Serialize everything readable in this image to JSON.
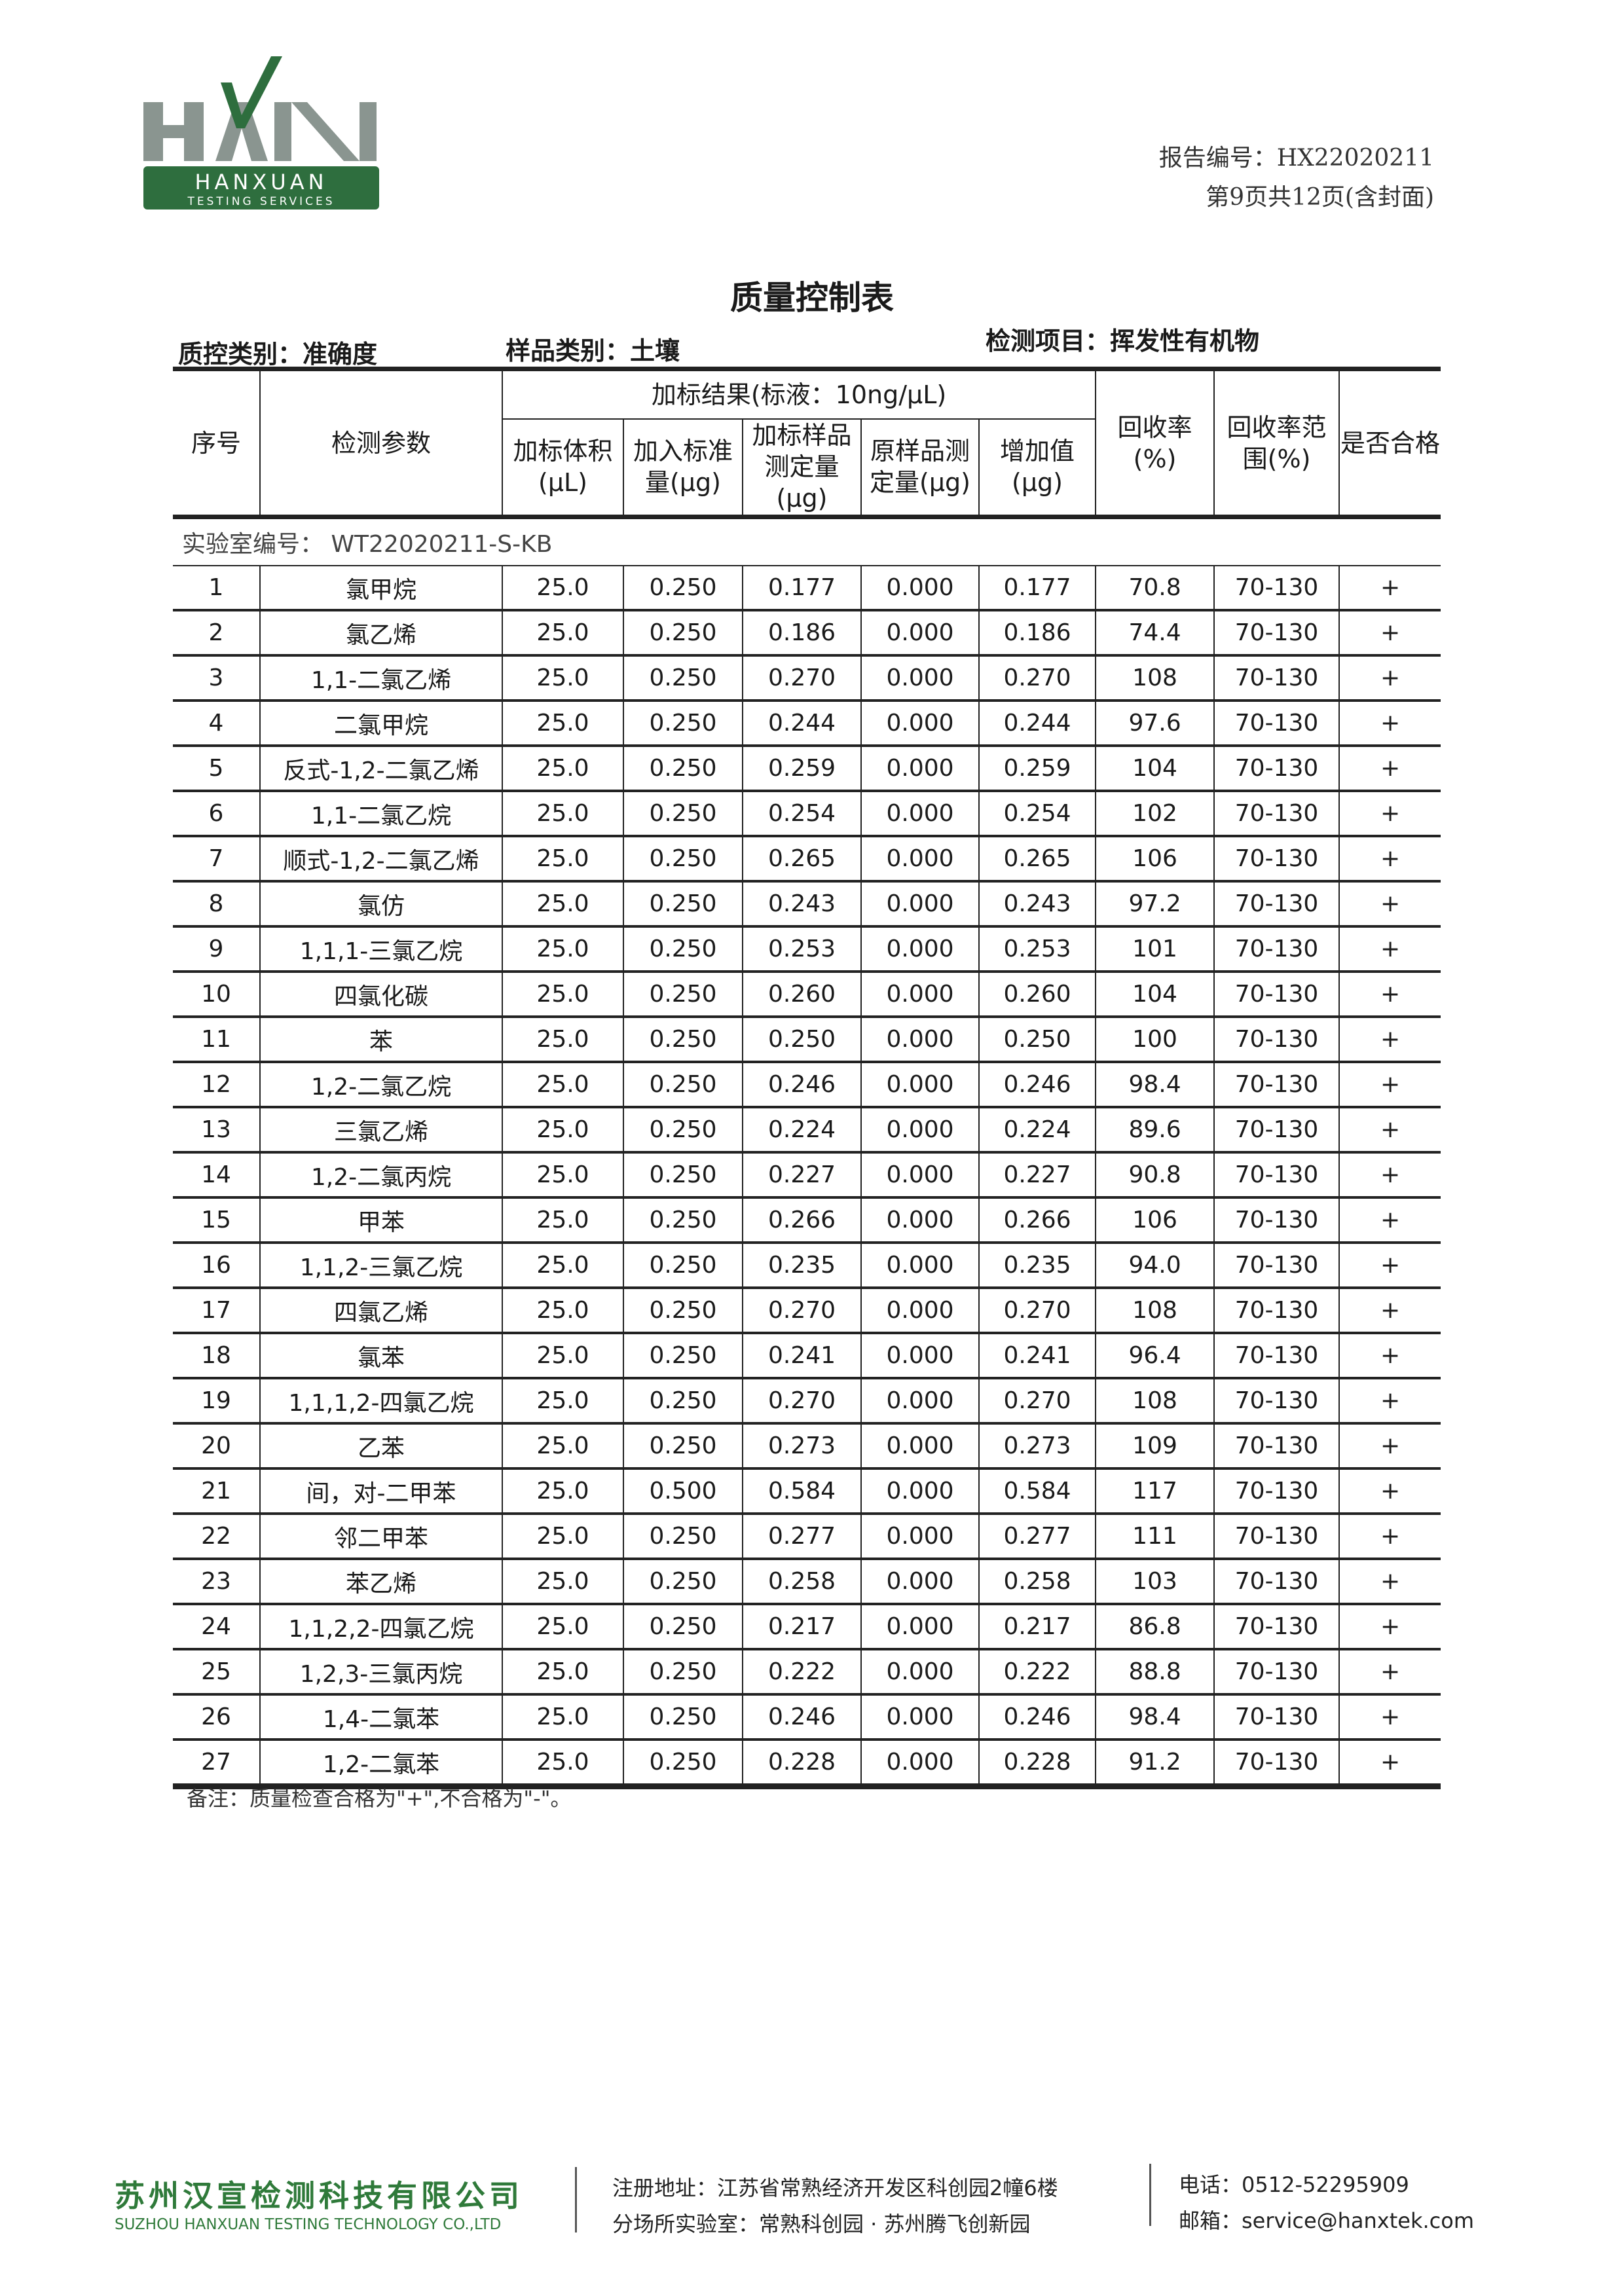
{
  "logo": {
    "letters": "HAN",
    "name": "HANXUAN",
    "tagline": "TESTING SERVICES",
    "brand_green": "#2e6e3e",
    "letter_gray": "#8a9590"
  },
  "report": {
    "number_label": "报告编号：",
    "number": "HX22020211",
    "page": "第9页共12页(含封面)"
  },
  "title": "质量控制表",
  "info": {
    "qc_type": "质控类别：准确度",
    "sample_type": "样品类别：土壤",
    "test_item": "检测项目：挥发性有机物"
  },
  "table": {
    "headers": {
      "no": "序号",
      "param": "检测参数",
      "group": "加标结果(标液：10ng/μL)",
      "spike_volume": "加标体积(μL)",
      "spike_amount": "加入标准量(μg)",
      "spiked_measured": "加标样品测定量(μg)",
      "original_measured": "原样品测定量(μg)",
      "increase": "增加值(μg)",
      "recovery": "回收率(%)",
      "recovery_range": "回收率范围(%)",
      "pass": "是否合格"
    },
    "lab_id": "实验室编号：  WT22020211-S-KB",
    "rows": [
      [
        "1",
        "氯甲烷",
        "25.0",
        "0.250",
        "0.177",
        "0.000",
        "0.177",
        "70.8",
        "70-130",
        "+"
      ],
      [
        "2",
        "氯乙烯",
        "25.0",
        "0.250",
        "0.186",
        "0.000",
        "0.186",
        "74.4",
        "70-130",
        "+"
      ],
      [
        "3",
        "1,1-二氯乙烯",
        "25.0",
        "0.250",
        "0.270",
        "0.000",
        "0.270",
        "108",
        "70-130",
        "+"
      ],
      [
        "4",
        "二氯甲烷",
        "25.0",
        "0.250",
        "0.244",
        "0.000",
        "0.244",
        "97.6",
        "70-130",
        "+"
      ],
      [
        "5",
        "反式-1,2-二氯乙烯",
        "25.0",
        "0.250",
        "0.259",
        "0.000",
        "0.259",
        "104",
        "70-130",
        "+"
      ],
      [
        "6",
        "1,1-二氯乙烷",
        "25.0",
        "0.250",
        "0.254",
        "0.000",
        "0.254",
        "102",
        "70-130",
        "+"
      ],
      [
        "7",
        "顺式-1,2-二氯乙烯",
        "25.0",
        "0.250",
        "0.265",
        "0.000",
        "0.265",
        "106",
        "70-130",
        "+"
      ],
      [
        "8",
        "氯仿",
        "25.0",
        "0.250",
        "0.243",
        "0.000",
        "0.243",
        "97.2",
        "70-130",
        "+"
      ],
      [
        "9",
        "1,1,1-三氯乙烷",
        "25.0",
        "0.250",
        "0.253",
        "0.000",
        "0.253",
        "101",
        "70-130",
        "+"
      ],
      [
        "10",
        "四氯化碳",
        "25.0",
        "0.250",
        "0.260",
        "0.000",
        "0.260",
        "104",
        "70-130",
        "+"
      ],
      [
        "11",
        "苯",
        "25.0",
        "0.250",
        "0.250",
        "0.000",
        "0.250",
        "100",
        "70-130",
        "+"
      ],
      [
        "12",
        "1,2-二氯乙烷",
        "25.0",
        "0.250",
        "0.246",
        "0.000",
        "0.246",
        "98.4",
        "70-130",
        "+"
      ],
      [
        "13",
        "三氯乙烯",
        "25.0",
        "0.250",
        "0.224",
        "0.000",
        "0.224",
        "89.6",
        "70-130",
        "+"
      ],
      [
        "14",
        "1,2-二氯丙烷",
        "25.0",
        "0.250",
        "0.227",
        "0.000",
        "0.227",
        "90.8",
        "70-130",
        "+"
      ],
      [
        "15",
        "甲苯",
        "25.0",
        "0.250",
        "0.266",
        "0.000",
        "0.266",
        "106",
        "70-130",
        "+"
      ],
      [
        "16",
        "1,1,2-三氯乙烷",
        "25.0",
        "0.250",
        "0.235",
        "0.000",
        "0.235",
        "94.0",
        "70-130",
        "+"
      ],
      [
        "17",
        "四氯乙烯",
        "25.0",
        "0.250",
        "0.270",
        "0.000",
        "0.270",
        "108",
        "70-130",
        "+"
      ],
      [
        "18",
        "氯苯",
        "25.0",
        "0.250",
        "0.241",
        "0.000",
        "0.241",
        "96.4",
        "70-130",
        "+"
      ],
      [
        "19",
        "1,1,1,2-四氯乙烷",
        "25.0",
        "0.250",
        "0.270",
        "0.000",
        "0.270",
        "108",
        "70-130",
        "+"
      ],
      [
        "20",
        "乙苯",
        "25.0",
        "0.250",
        "0.273",
        "0.000",
        "0.273",
        "109",
        "70-130",
        "+"
      ],
      [
        "21",
        "间，对-二甲苯",
        "25.0",
        "0.500",
        "0.584",
        "0.000",
        "0.584",
        "117",
        "70-130",
        "+"
      ],
      [
        "22",
        "邻二甲苯",
        "25.0",
        "0.250",
        "0.277",
        "0.000",
        "0.277",
        "111",
        "70-130",
        "+"
      ],
      [
        "23",
        "苯乙烯",
        "25.0",
        "0.250",
        "0.258",
        "0.000",
        "0.258",
        "103",
        "70-130",
        "+"
      ],
      [
        "24",
        "1,1,2,2-四氯乙烷",
        "25.0",
        "0.250",
        "0.217",
        "0.000",
        "0.217",
        "86.8",
        "70-130",
        "+"
      ],
      [
        "25",
        "1,2,3-三氯丙烷",
        "25.0",
        "0.250",
        "0.222",
        "0.000",
        "0.222",
        "88.8",
        "70-130",
        "+"
      ],
      [
        "26",
        "1,4-二氯苯",
        "25.0",
        "0.250",
        "0.246",
        "0.000",
        "0.246",
        "98.4",
        "70-130",
        "+"
      ],
      [
        "27",
        "1,2-二氯苯",
        "25.0",
        "0.250",
        "0.228",
        "0.000",
        "0.228",
        "91.2",
        "70-130",
        "+"
      ]
    ]
  },
  "note": "备注：质量检查合格为\"+\",不合格为\"-\"。",
  "footer": {
    "company": "苏州汉宣检测科技有限公司",
    "company_en": "SUZHOU HANXUAN TESTING TECHNOLOGY CO.,LTD",
    "address": "注册地址：江苏省常熟经济开发区科创园2幢6楼",
    "labs": "分场所实验室：常熟科创园 · 苏州腾飞创新园",
    "phone": "电话：0512-52295909",
    "email": "邮箱：service@hanxtek.com"
  }
}
